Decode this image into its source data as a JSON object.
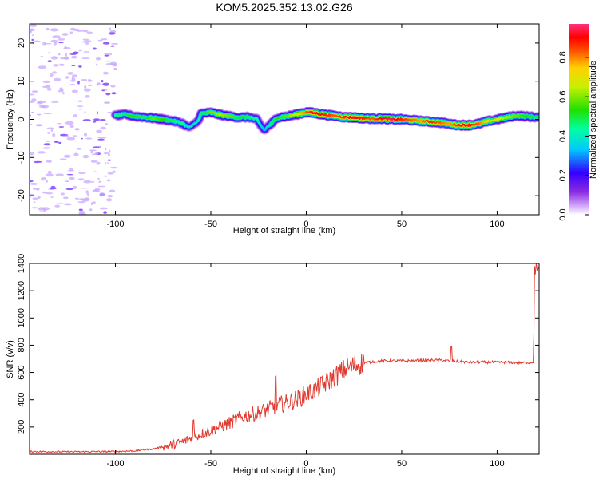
{
  "title": "KOM5.2025.352.13.02.G26",
  "colors": {
    "snr_line": "#e03a30",
    "noise_speckle": "#c8a8ff",
    "noise_dark": "#8a4dff"
  },
  "chart_data": [
    {
      "type": "heatmap",
      "name": "spectrogram",
      "xlabel": "Height of straight line (km)",
      "ylabel": "Frequency (Hz)",
      "xlim": [
        -145,
        122
      ],
      "ylim": [
        -25,
        25
      ],
      "xticks": [
        -100,
        -50,
        0,
        50,
        100
      ],
      "yticks": [
        -20,
        -10,
        0,
        10,
        20
      ],
      "colorbar": {
        "label": "Normalized spectral amplitude",
        "range": [
          0,
          0.97
        ],
        "ticks": [
          0.0,
          0.2,
          0.4,
          0.6,
          0.8
        ]
      },
      "ridge": {
        "x": [
          -100,
          -95,
          -90,
          -85,
          -80,
          -75,
          -70,
          -65,
          -62,
          -60,
          -57,
          -55,
          -50,
          -45,
          -40,
          -35,
          -30,
          -26,
          -24,
          -22,
          -20,
          -18,
          -15,
          -10,
          -5,
          0,
          5,
          10,
          15,
          20,
          25,
          30,
          35,
          40,
          45,
          50,
          55,
          60,
          65,
          70,
          75,
          80,
          85,
          90,
          95,
          100,
          105,
          110,
          115,
          122
        ],
        "y": [
          1.0,
          1.3,
          0.8,
          0.6,
          0.3,
          0.0,
          -0.4,
          -1.0,
          -2.0,
          -1.8,
          -0.5,
          1.5,
          1.8,
          1.2,
          0.8,
          0.5,
          0.6,
          0.0,
          -1.5,
          -2.8,
          -1.8,
          -1.0,
          0.5,
          0.8,
          1.3,
          1.9,
          1.6,
          1.2,
          0.9,
          0.6,
          0.5,
          0.3,
          0.2,
          0.2,
          0.0,
          0.0,
          -0.2,
          -0.4,
          -0.6,
          -0.8,
          -1.2,
          -1.5,
          -1.5,
          -1.2,
          -0.5,
          0.0,
          0.5,
          1.0,
          0.8,
          0.5
        ],
        "amplitude": [
          0.45,
          0.5,
          0.55,
          0.5,
          0.6,
          0.55,
          0.5,
          0.45,
          0.4,
          0.4,
          0.4,
          0.5,
          0.6,
          0.65,
          0.6,
          0.55,
          0.5,
          0.45,
          0.4,
          0.35,
          0.4,
          0.5,
          0.55,
          0.6,
          0.7,
          0.85,
          0.95,
          0.9,
          0.85,
          0.9,
          0.95,
          0.9,
          0.85,
          0.95,
          0.97,
          0.9,
          0.85,
          0.8,
          0.9,
          0.85,
          0.8,
          0.9,
          0.95,
          0.85,
          0.75,
          0.7,
          0.65,
          0.6,
          0.55,
          0.5
        ]
      }
    },
    {
      "type": "line",
      "name": "snr",
      "xlabel": "Height of straight line (km)",
      "ylabel": "SNR (v/v)",
      "xlim": [
        -145,
        122
      ],
      "ylim": [
        0,
        1400
      ],
      "xticks": [
        -100,
        -50,
        0,
        50,
        100
      ],
      "yticks": [
        200,
        400,
        600,
        800,
        1000,
        1200,
        1400
      ],
      "series": [
        {
          "name": "SNR",
          "x": [
            -145,
            -120,
            -100,
            -90,
            -80,
            -75,
            -70,
            -65,
            -60,
            -55,
            -50,
            -45,
            -40,
            -35,
            -30,
            -25,
            -20,
            -15,
            -10,
            -5,
            0,
            5,
            10,
            15,
            20,
            25,
            30,
            35,
            40,
            45,
            50,
            55,
            60,
            65,
            70,
            75,
            80,
            85,
            90,
            95,
            100,
            105,
            110,
            115,
            119,
            120,
            121,
            122
          ],
          "y": [
            20,
            18,
            20,
            25,
            40,
            55,
            70,
            90,
            115,
            150,
            175,
            205,
            230,
            265,
            290,
            305,
            330,
            360,
            380,
            405,
            440,
            475,
            520,
            570,
            620,
            650,
            670,
            680,
            685,
            685,
            685,
            685,
            690,
            690,
            690,
            685,
            680,
            675,
            675,
            675,
            675,
            675,
            672,
            672,
            675,
            1380,
            1350,
            1370
          ]
        }
      ]
    }
  ]
}
